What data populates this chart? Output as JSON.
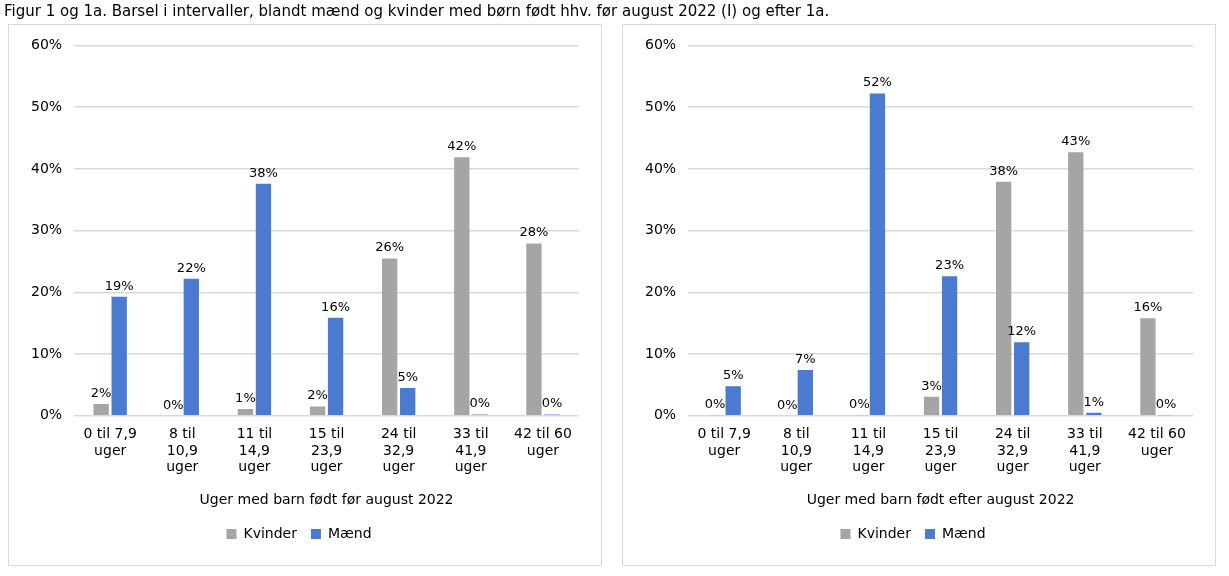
{
  "chart_data": [
    {
      "type": "bar",
      "title": "Figur 1 og 1a. Barsel i intervaller, blandt mænd og kvinder med børn født hhv. før august 2022 (I) og efter 1a.",
      "xlabel": "Uger med barn født før august 2022",
      "categories": [
        "0 til 7,9 uger",
        "8 til 10,9 uger",
        "11 til 14,9 uger",
        "15 til 23,9 uger",
        "24 til 32,9 uger",
        "33 til 41,9 uger",
        "42 til 60 uger"
      ],
      "series": [
        {
          "name": "Kvinder",
          "color": "#a5a5a5",
          "values": [
            1.9,
            0,
            1.1,
            1.5,
            25.5,
            41.9,
            27.9
          ],
          "value_labels": [
            "2%",
            "0%",
            "1%",
            "2%",
            "26%",
            "42%",
            "28%"
          ]
        },
        {
          "name": "Mænd",
          "color": "#4a7bd0",
          "values": [
            19.3,
            22.2,
            37.6,
            15.9,
            4.5,
            0.2,
            0.2
          ],
          "value_labels": [
            "19%",
            "22%",
            "38%",
            "16%",
            "5%",
            "0%",
            "0%"
          ]
        }
      ],
      "ylim": [
        0,
        60
      ],
      "yticks": [
        {
          "value": 0,
          "label": "0%"
        },
        {
          "value": 10,
          "label": "10%"
        },
        {
          "value": 20,
          "label": "20%"
        },
        {
          "value": 30,
          "label": "30%"
        },
        {
          "value": 40,
          "label": "40%"
        },
        {
          "value": 50,
          "label": "50%"
        },
        {
          "value": 60,
          "label": "60%"
        }
      ],
      "grid": "y",
      "legend": "bottom"
    },
    {
      "type": "bar",
      "xlabel": "Uger med barn født efter august 2022",
      "categories": [
        "0 til 7,9 uger",
        "8 til 10,9 uger",
        "11 til 14,9 uger",
        "15 til 23,9 uger",
        "24 til 32,9 uger",
        "33 til 41,9 uger",
        "42 til 60 uger"
      ],
      "series": [
        {
          "name": "Kvinder",
          "color": "#a5a5a5",
          "values": [
            0.1,
            0,
            0.1,
            3.1,
            37.9,
            42.7,
            15.8
          ],
          "value_labels": [
            "0%",
            "0%",
            "0%",
            "3%",
            "38%",
            "43%",
            "16%"
          ]
        },
        {
          "name": "Mænd",
          "color": "#4a7bd0",
          "values": [
            4.8,
            7.4,
            52.2,
            22.6,
            11.9,
            0.5,
            0.1
          ],
          "value_labels": [
            "5%",
            "7%",
            "52%",
            "23%",
            "12%",
            "1%",
            "0%"
          ]
        }
      ],
      "ylim": [
        0,
        60
      ],
      "yticks": [
        {
          "value": 0,
          "label": "0%"
        },
        {
          "value": 10,
          "label": "10%"
        },
        {
          "value": 20,
          "label": "20%"
        },
        {
          "value": 30,
          "label": "30%"
        },
        {
          "value": 40,
          "label": "40%"
        },
        {
          "value": 50,
          "label": "50%"
        },
        {
          "value": 60,
          "label": "60%"
        }
      ],
      "grid": "y",
      "legend": "bottom"
    }
  ]
}
